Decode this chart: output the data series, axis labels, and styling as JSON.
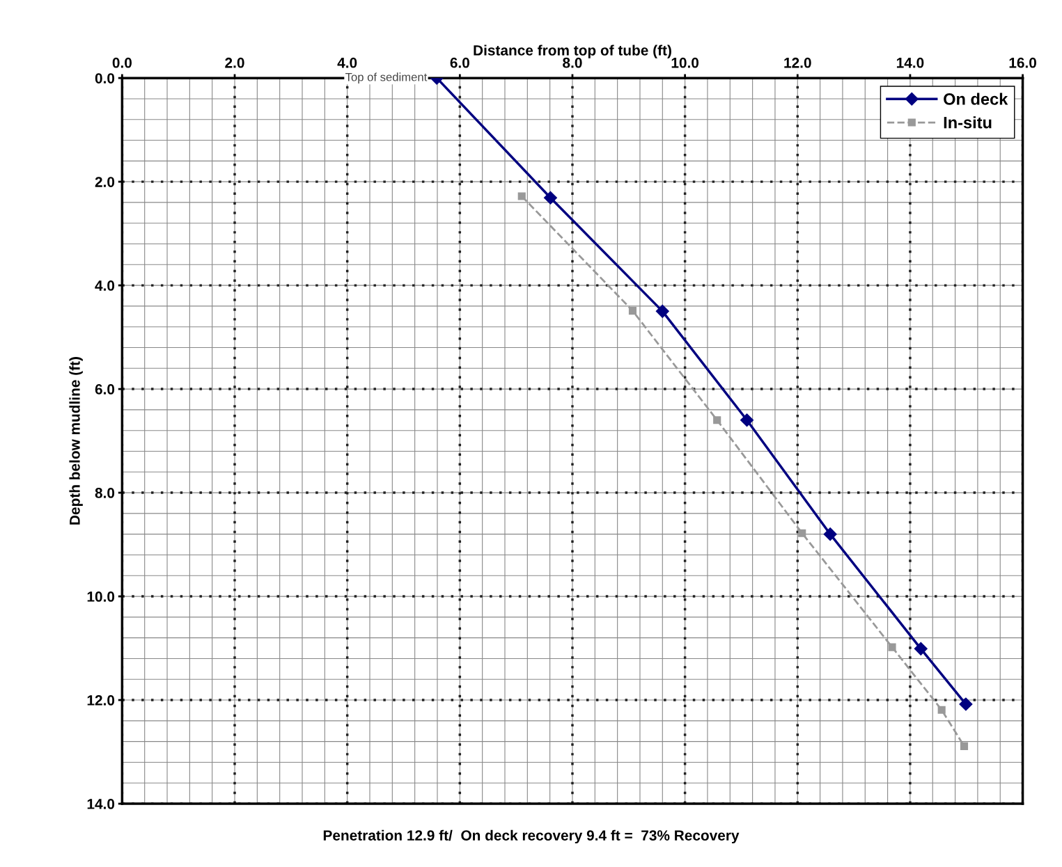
{
  "chart_data": {
    "type": "line",
    "xlabel": "Distance from top of tube (ft)",
    "ylabel": "Depth below mudline (ft)",
    "xlim": [
      0,
      16
    ],
    "xticks": [
      {
        "value": 0,
        "label": "0.0"
      },
      {
        "value": 2,
        "label": "2.0"
      },
      {
        "value": 4,
        "label": "4.0"
      },
      {
        "value": 6,
        "label": "6.0"
      },
      {
        "value": 8,
        "label": "8.0"
      },
      {
        "value": 10,
        "label": "10.0"
      },
      {
        "value": 12,
        "label": "12.0"
      },
      {
        "value": 14,
        "label": "14.0"
      },
      {
        "value": 16,
        "label": "16.0"
      }
    ],
    "ylim": [
      14,
      0
    ],
    "yticks": [
      {
        "value": 0,
        "label": "0.0"
      },
      {
        "value": 2,
        "label": "2.0"
      },
      {
        "value": 4,
        "label": "4.0"
      },
      {
        "value": 6,
        "label": "6.0"
      },
      {
        "value": 8,
        "label": "8.0"
      },
      {
        "value": 10,
        "label": "10.0"
      },
      {
        "value": 12,
        "label": "12.0"
      },
      {
        "value": 14,
        "label": "14.0"
      }
    ],
    "grid": true,
    "legend": "top right",
    "series": [
      {
        "name": "On deck",
        "color": "#000080",
        "marker": "diamond",
        "line_style": "solid",
        "x": [
          5.59,
          7.61,
          9.6,
          11.1,
          12.58,
          14.19,
          14.99
        ],
        "values": [
          0,
          2.31,
          4.5,
          6.6,
          8.8,
          11.01,
          12.08
        ]
      },
      {
        "name": "In-situ",
        "color": "#999999",
        "marker": "square",
        "line_style": "dashed",
        "x": [
          7.1,
          9.07,
          10.57,
          12.08,
          13.68,
          14.56,
          14.96
        ],
        "values": [
          2.28,
          4.49,
          6.6,
          8.78,
          10.98,
          12.19,
          12.89
        ]
      }
    ],
    "annotations": [
      {
        "text": "Top of sediment",
        "x": 5.59,
        "y": 0
      },
      "Penetration 12.9 ft/  On deck recovery 9.4 ft =  73% Recovery"
    ]
  }
}
